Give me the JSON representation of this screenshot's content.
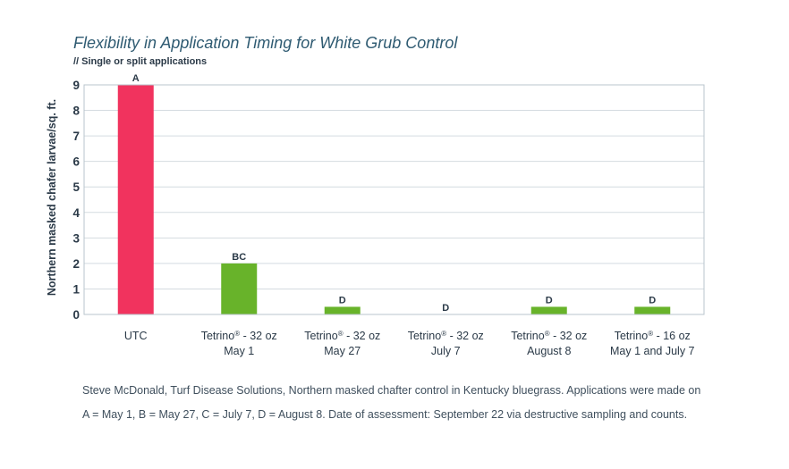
{
  "chart_data": {
    "type": "bar",
    "title": "Flexibility in Application Timing for White Grub Control",
    "subtitle": "// Single or split applications",
    "ylabel": "Northern masked chafer larvae/sq. ft.",
    "xlabel": "",
    "ylim": [
      0,
      9
    ],
    "yticks": [
      "0",
      "1",
      "2",
      "3",
      "4",
      "5",
      "6",
      "7",
      "8",
      "9"
    ],
    "grid": true,
    "categories": [
      [
        "UTC"
      ],
      [
        "Tetrino® - 32 oz",
        "May 1"
      ],
      [
        "Tetrino® - 32 oz",
        "May 27"
      ],
      [
        "Tetrino® - 32 oz",
        "July 7"
      ],
      [
        "Tetrino® - 32 oz",
        "August 8"
      ],
      [
        "Tetrino® - 16 oz",
        "May 1 and July 7"
      ]
    ],
    "values": [
      9,
      2,
      0.3,
      0,
      0.3,
      0.3
    ],
    "data_labels": [
      "A",
      "BC",
      "D",
      "D",
      "D",
      "D"
    ],
    "bar_colors": [
      "#f1335e",
      "#68b32a",
      "#68b32a",
      "#68b32a",
      "#68b32a",
      "#68b32a"
    ]
  },
  "footnote": {
    "line1": "Steve McDonald, Turf Disease Solutions, Northern masked chafter control in Kentucky bluegrass. Applications were made on",
    "line2": "A = May 1, B = May 27, C = July 7, D = August 8. Date of assessment: September 22 via destructive sampling and counts."
  },
  "colors": {
    "grid": "#d4dbe0",
    "axis": "#b9c4cc"
  }
}
